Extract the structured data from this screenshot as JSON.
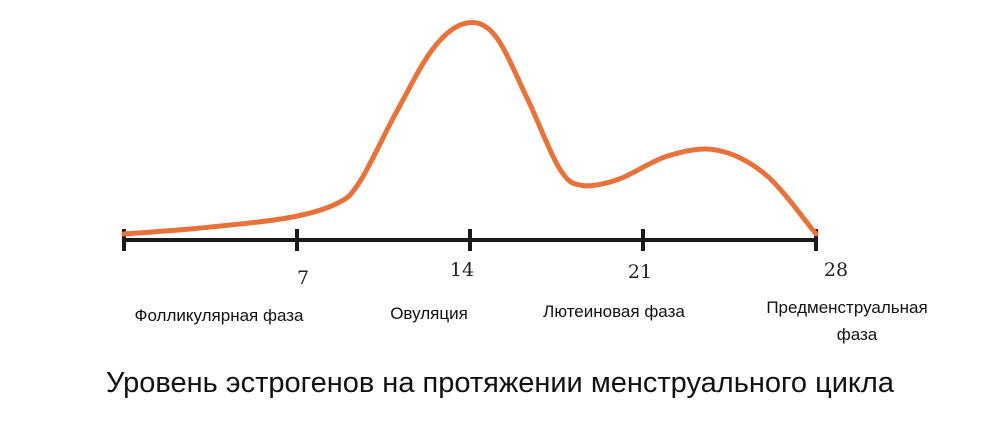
{
  "chart_data": {
    "type": "line",
    "title": "Уровень эстрогенов на протяжении менструального цикла",
    "xlabel": "",
    "ylabel": "",
    "grid": false,
    "xlim": [
      0,
      28
    ],
    "x_ticks": [
      {
        "x": 7,
        "label": "7"
      },
      {
        "x": 14,
        "label": "14"
      },
      {
        "x": 21,
        "label": "21"
      },
      {
        "x": 28,
        "label": "28"
      }
    ],
    "phases": [
      {
        "label": "Фолликулярная фаза"
      },
      {
        "label": "Овуляция"
      },
      {
        "label": "Лютеиновая фаза"
      },
      {
        "label": "Предменструальная фаза"
      }
    ],
    "series": [
      {
        "color": "#E8733A",
        "points": [
          [
            0,
            1.0
          ],
          [
            3,
            1.3
          ],
          [
            6.5,
            1.8
          ],
          [
            8.5,
            2.5
          ],
          [
            9.5,
            3.6
          ],
          [
            11,
            7.2
          ],
          [
            12.5,
            10.5
          ],
          [
            13.8,
            11.8
          ],
          [
            15,
            11.2
          ],
          [
            16.3,
            8.0
          ],
          [
            17.6,
            4.4
          ],
          [
            18.5,
            3.5
          ],
          [
            20,
            3.8
          ],
          [
            22,
            5.0
          ],
          [
            24,
            5.3
          ],
          [
            26,
            4.0
          ],
          [
            28,
            1.0
          ]
        ]
      }
    ]
  }
}
